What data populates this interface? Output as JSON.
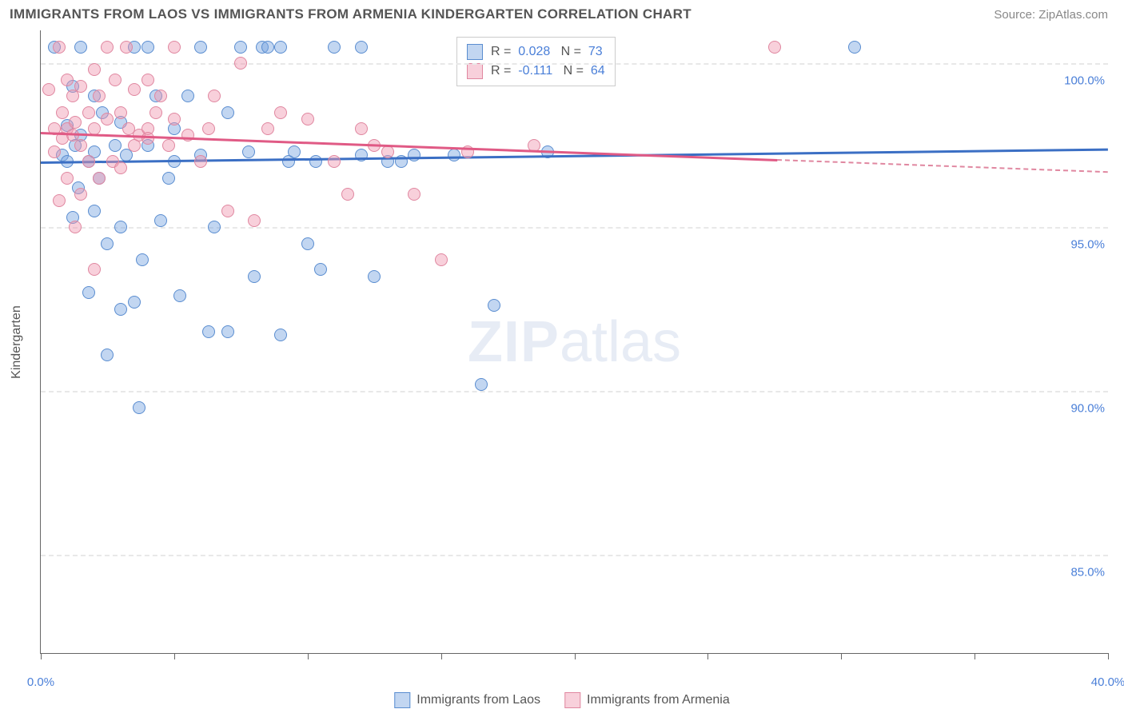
{
  "title": "IMMIGRANTS FROM LAOS VS IMMIGRANTS FROM ARMENIA KINDERGARTEN CORRELATION CHART",
  "source_label": "Source:",
  "source_name": "ZipAtlas.com",
  "y_axis_label": "Kindergarten",
  "watermark_bold": "ZIP",
  "watermark_rest": "atlas",
  "chart": {
    "type": "scatter",
    "xlim": [
      0,
      40
    ],
    "ylim": [
      82,
      101
    ],
    "x_ticks_pct": [
      0,
      12.5,
      25,
      37.5,
      50,
      62.5,
      75,
      87.5,
      100
    ],
    "x_tick_labels": {
      "first": "0.0%",
      "last": "40.0%"
    },
    "y_ticks": [
      {
        "y": 100.0,
        "label": "100.0%"
      },
      {
        "y": 95.0,
        "label": "95.0%"
      },
      {
        "y": 90.0,
        "label": "90.0%"
      },
      {
        "y": 85.0,
        "label": "85.0%"
      }
    ],
    "grid_color": "#e8e8e8",
    "axis_color": "#666666",
    "background_color": "#ffffff"
  },
  "series": [
    {
      "name": "Immigrants from Laos",
      "fill_color": "rgba(120,165,225,0.45)",
      "stroke_color": "#5a8dd0",
      "line_color": "#3b6fc4",
      "R": "0.028",
      "N": "73",
      "trend": {
        "x1_pct": 0,
        "y1": 97.0,
        "x2_pct": 100,
        "y2": 97.4,
        "solid_to_pct": 100
      },
      "points": [
        [
          0.5,
          100.5
        ],
        [
          0.8,
          97.2
        ],
        [
          1.0,
          98.1
        ],
        [
          1.0,
          97.0
        ],
        [
          1.2,
          99.3
        ],
        [
          1.2,
          95.3
        ],
        [
          1.3,
          97.5
        ],
        [
          1.4,
          96.2
        ],
        [
          1.5,
          97.8
        ],
        [
          1.5,
          100.5
        ],
        [
          1.8,
          97.0
        ],
        [
          1.8,
          93.0
        ],
        [
          2.0,
          99.0
        ],
        [
          2.0,
          95.5
        ],
        [
          2.0,
          97.3
        ],
        [
          2.2,
          96.5
        ],
        [
          2.3,
          98.5
        ],
        [
          2.5,
          91.1
        ],
        [
          2.5,
          94.5
        ],
        [
          2.8,
          97.5
        ],
        [
          3.0,
          92.5
        ],
        [
          3.0,
          95.0
        ],
        [
          3.0,
          98.2
        ],
        [
          3.2,
          97.2
        ],
        [
          3.5,
          92.7
        ],
        [
          3.5,
          100.5
        ],
        [
          3.7,
          89.5
        ],
        [
          3.8,
          94.0
        ],
        [
          4.0,
          97.5
        ],
        [
          4.0,
          100.5
        ],
        [
          4.3,
          99.0
        ],
        [
          4.5,
          95.2
        ],
        [
          4.8,
          96.5
        ],
        [
          5.0,
          98.0
        ],
        [
          5.0,
          97.0
        ],
        [
          5.2,
          92.9
        ],
        [
          5.5,
          99.0
        ],
        [
          6.0,
          97.2
        ],
        [
          6.0,
          100.5
        ],
        [
          6.3,
          91.8
        ],
        [
          6.5,
          95.0
        ],
        [
          7.0,
          91.8
        ],
        [
          7.0,
          98.5
        ],
        [
          7.5,
          100.5
        ],
        [
          7.8,
          97.3
        ],
        [
          8.0,
          93.5
        ],
        [
          8.3,
          100.5
        ],
        [
          8.5,
          100.5
        ],
        [
          9.0,
          100.5
        ],
        [
          9.0,
          91.7
        ],
        [
          9.3,
          97.0
        ],
        [
          9.5,
          97.3
        ],
        [
          10.0,
          94.5
        ],
        [
          10.3,
          97.0
        ],
        [
          10.5,
          93.7
        ],
        [
          11.0,
          100.5
        ],
        [
          12.0,
          100.5
        ],
        [
          12.0,
          97.2
        ],
        [
          12.5,
          93.5
        ],
        [
          13.0,
          97.0
        ],
        [
          13.5,
          97.0
        ],
        [
          14.0,
          97.2
        ],
        [
          15.5,
          97.2
        ],
        [
          16.5,
          90.2
        ],
        [
          17.0,
          92.6
        ],
        [
          19.0,
          97.3
        ],
        [
          30.5,
          100.5
        ]
      ]
    },
    {
      "name": "Immigrants from Armenia",
      "fill_color": "rgba(240,150,175,0.45)",
      "stroke_color": "#e087a0",
      "line_color": "#e05a85",
      "R": "-0.111",
      "N": "64",
      "trend": {
        "x1_pct": 0,
        "y1": 97.9,
        "x2_pct": 100,
        "y2": 96.7,
        "solid_to_pct": 69
      },
      "points": [
        [
          0.3,
          99.2
        ],
        [
          0.5,
          98.0
        ],
        [
          0.5,
          97.3
        ],
        [
          0.7,
          100.5
        ],
        [
          0.7,
          95.8
        ],
        [
          0.8,
          98.5
        ],
        [
          0.8,
          97.7
        ],
        [
          1.0,
          99.5
        ],
        [
          1.0,
          98.0
        ],
        [
          1.0,
          96.5
        ],
        [
          1.2,
          97.8
        ],
        [
          1.2,
          99.0
        ],
        [
          1.3,
          98.2
        ],
        [
          1.3,
          95.0
        ],
        [
          1.5,
          97.5
        ],
        [
          1.5,
          99.3
        ],
        [
          1.5,
          96.0
        ],
        [
          1.8,
          98.5
        ],
        [
          1.8,
          97.0
        ],
        [
          2.0,
          99.8
        ],
        [
          2.0,
          98.0
        ],
        [
          2.0,
          93.7
        ],
        [
          2.2,
          99.0
        ],
        [
          2.2,
          96.5
        ],
        [
          2.5,
          100.5
        ],
        [
          2.5,
          98.3
        ],
        [
          2.7,
          97.0
        ],
        [
          2.8,
          99.5
        ],
        [
          3.0,
          98.5
        ],
        [
          3.0,
          96.8
        ],
        [
          3.2,
          100.5
        ],
        [
          3.3,
          98.0
        ],
        [
          3.5,
          97.5
        ],
        [
          3.5,
          99.2
        ],
        [
          3.7,
          97.8
        ],
        [
          4.0,
          98.0
        ],
        [
          4.0,
          99.5
        ],
        [
          4.0,
          97.7
        ],
        [
          4.3,
          98.5
        ],
        [
          4.5,
          99.0
        ],
        [
          4.8,
          97.5
        ],
        [
          5.0,
          98.3
        ],
        [
          5.0,
          100.5
        ],
        [
          5.5,
          97.8
        ],
        [
          6.0,
          97.0
        ],
        [
          6.3,
          98.0
        ],
        [
          6.5,
          99.0
        ],
        [
          7.0,
          95.5
        ],
        [
          7.5,
          100.0
        ],
        [
          8.0,
          95.2
        ],
        [
          8.5,
          98.0
        ],
        [
          9.0,
          98.5
        ],
        [
          10.0,
          98.3
        ],
        [
          11.0,
          97.0
        ],
        [
          11.5,
          96.0
        ],
        [
          12.0,
          98.0
        ],
        [
          12.5,
          97.5
        ],
        [
          13.0,
          97.3
        ],
        [
          14.0,
          96.0
        ],
        [
          15.0,
          94.0
        ],
        [
          16.0,
          97.3
        ],
        [
          18.5,
          97.5
        ],
        [
          27.5,
          100.5
        ]
      ]
    }
  ],
  "legend_top": {
    "r_label": "R =",
    "n_label": "N ="
  },
  "bottom_legend_label1": "Immigrants from Laos",
  "bottom_legend_label2": "Immigrants from Armenia"
}
